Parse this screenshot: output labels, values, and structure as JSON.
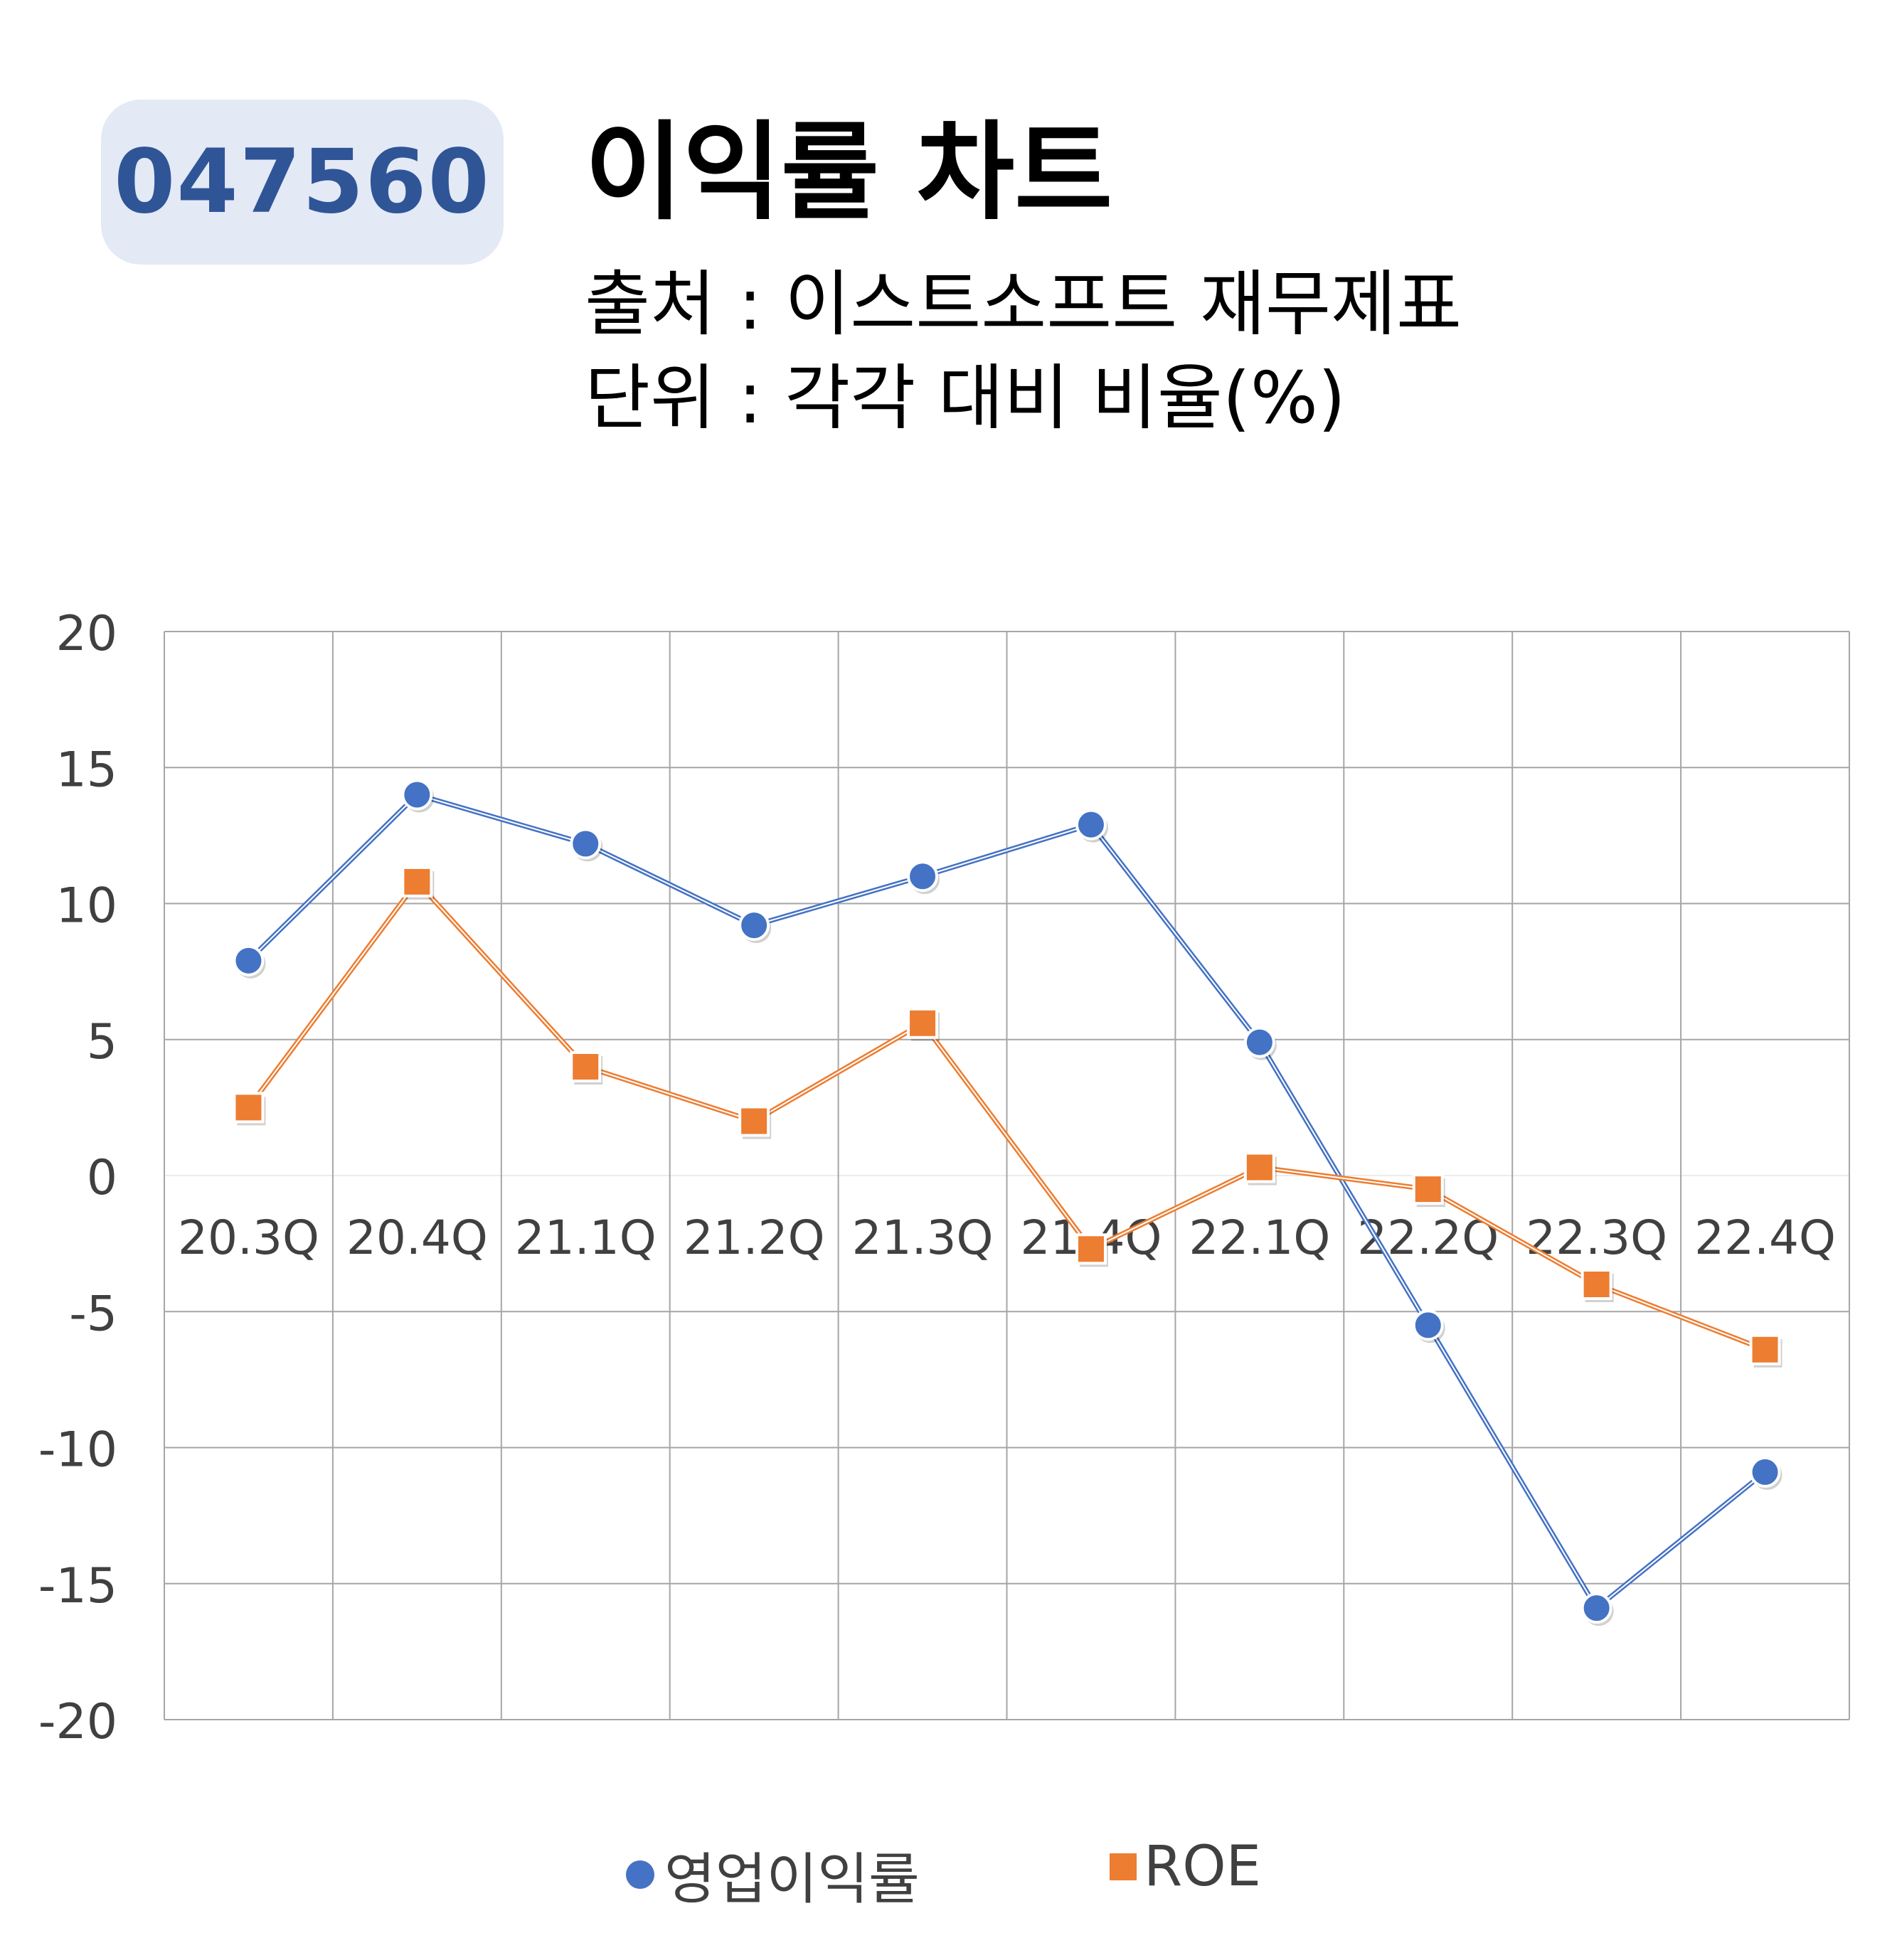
{
  "header": {
    "code": "047560",
    "title": "이익률 차트",
    "source_line": "출처 : 이스트소프트 재무제표",
    "unit_line": "단위 : 각각 대비 비율(%)"
  },
  "chart_data": {
    "type": "line",
    "title": "이익률 차트",
    "xlabel": "",
    "ylabel": "",
    "categories": [
      "20.3Q",
      "20.4Q",
      "21.1Q",
      "21.2Q",
      "21.3Q",
      "21.4Q",
      "22.1Q",
      "22.2Q",
      "22.3Q",
      "22.4Q"
    ],
    "series": [
      {
        "name": "영업이익률",
        "color": "#4472c4",
        "marker": "circle",
        "values": [
          7.9,
          14.0,
          12.2,
          9.2,
          11.0,
          12.9,
          4.9,
          -5.5,
          -15.9,
          -10.9
        ]
      },
      {
        "name": "ROE",
        "color": "#ed7d31",
        "marker": "square",
        "values": [
          2.5,
          10.8,
          4.0,
          2.0,
          5.6,
          -2.7,
          0.3,
          -0.5,
          -4.0,
          -6.4
        ]
      }
    ],
    "ylim": [
      -20,
      20
    ],
    "yticks": [
      20,
      15,
      10,
      5,
      0,
      -5,
      -10,
      -15,
      -20
    ],
    "grid": true,
    "legend": "bottom"
  }
}
